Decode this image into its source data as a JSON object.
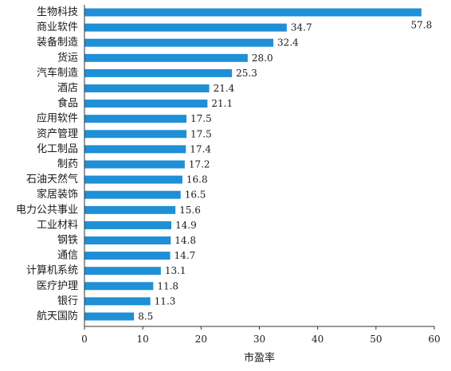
{
  "chart_data": {
    "type": "bar",
    "orientation": "horizontal",
    "categories": [
      "生物科技",
      "商业软件",
      "装备制造",
      "货运",
      "汽车制造",
      "酒店",
      "食品",
      "应用软件",
      "资产管理",
      "化工制品",
      "制药",
      "石油天然气",
      "家居装饰",
      "电力公共事业",
      "工业材料",
      "钢铁",
      "通信",
      "计算机系统",
      "医疗护理",
      "银行",
      "航天国防"
    ],
    "values": [
      57.8,
      34.7,
      32.4,
      28.0,
      25.3,
      21.4,
      21.1,
      17.5,
      17.5,
      17.4,
      17.2,
      16.8,
      16.5,
      15.6,
      14.9,
      14.8,
      14.7,
      13.1,
      11.8,
      11.3,
      8.5
    ],
    "value_labels": [
      "57.8",
      "34.7",
      "32.4",
      "28.0",
      "25.3",
      "21.4",
      "21.1",
      "17.5",
      "17.5",
      "17.4",
      "17.2",
      "16.8",
      "16.5",
      "15.6",
      "14.9",
      "14.8",
      "14.7",
      "13.1",
      "11.8",
      "11.3",
      "8.5"
    ],
    "xlabel": "市盈率",
    "ylabel": "",
    "xlim": [
      0,
      60
    ],
    "xticks": [
      0,
      10,
      20,
      30,
      40,
      50,
      60
    ],
    "grid": false,
    "legend": "none",
    "bar_color": "#1f8fd6"
  }
}
